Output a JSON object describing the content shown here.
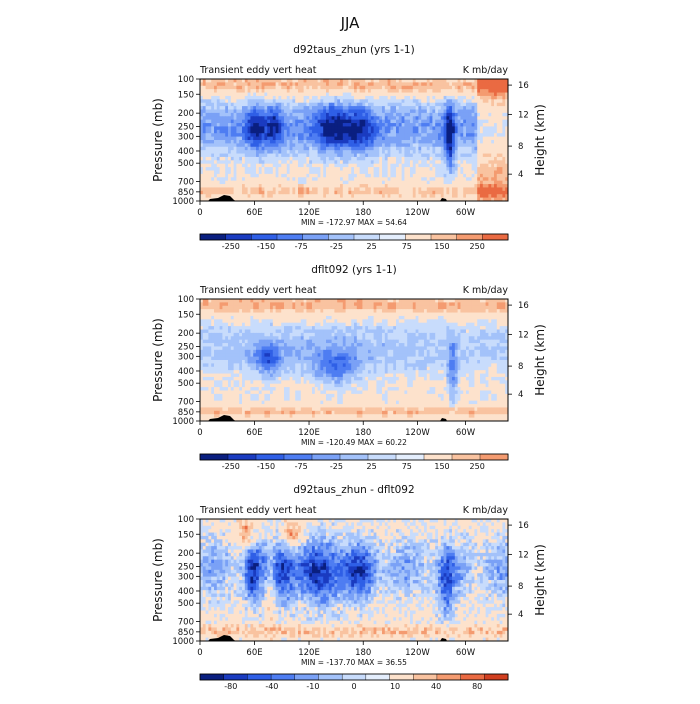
{
  "figure": {
    "title": "JJA"
  },
  "palettes": {
    "main": [
      "#0a1f80",
      "#1a3bc0",
      "#2f5fe6",
      "#4e7df2",
      "#7aa1f6",
      "#a3c2fa",
      "#c8dcfc",
      "#e4eefd",
      "#fde2cc",
      "#f9c3a0",
      "#f49b70",
      "#ea6a42",
      "#d13f20",
      "#a8220e",
      "#6b0f05"
    ],
    "diff": [
      "#0a1f80",
      "#1a3bc0",
      "#2f5fe6",
      "#4e7df2",
      "#7aa1f6",
      "#a3c2fa",
      "#c8dcfc",
      "#e4eefd",
      "#fde2cc",
      "#f9c3a0",
      "#f49b70",
      "#ea6a42",
      "#d13f20",
      "#a8220e",
      "#6b0f05"
    ]
  },
  "chart_data": [
    {
      "type": "heatmap",
      "title": "d92taus_zhun (yrs 1-1)",
      "left_label": "Transient eddy vert heat",
      "right_label": "K mb/day",
      "ylabel": "Pressure (mb)",
      "ylabel_right": "Height (km)",
      "pressure_ticks": [
        "100",
        "150",
        "200",
        "250",
        "300",
        "400",
        "500",
        "700",
        "850",
        "1000"
      ],
      "height_ticks": [
        "16",
        "12",
        "8",
        "4"
      ],
      "x_ticks": [
        "0",
        "60E",
        "120E",
        "180",
        "120W",
        "60W"
      ],
      "min_max_text": "MIN = -172.97   MAX =  54.64",
      "colorbar_labels": [
        "-250",
        "-150",
        "-75",
        "-25",
        "25",
        "75",
        "150",
        "250"
      ],
      "palette": "main",
      "max_level": 11
    },
    {
      "type": "heatmap",
      "title": "dflt092 (yrs 1-1)",
      "left_label": "Transient eddy vert heat",
      "right_label": "K mb/day",
      "ylabel": "Pressure (mb)",
      "ylabel_right": "Height (km)",
      "pressure_ticks": [
        "100",
        "150",
        "200",
        "250",
        "300",
        "400",
        "500",
        "700",
        "850",
        "1000"
      ],
      "height_ticks": [
        "16",
        "12",
        "8",
        "4"
      ],
      "x_ticks": [
        "0",
        "60E",
        "120E",
        "180",
        "120W",
        "60W"
      ],
      "min_max_text": "MIN = -120.49   MAX =  60.22",
      "colorbar_labels": [
        "-250",
        "-150",
        "-75",
        "-25",
        "25",
        "75",
        "150",
        "250"
      ],
      "palette": "main",
      "max_level": 10
    },
    {
      "type": "heatmap",
      "title": "d92taus_zhun - dflt092",
      "left_label": "Transient eddy vert heat",
      "right_label": "K mb/day",
      "ylabel": "Pressure (mb)",
      "ylabel_right": "Height (km)",
      "pressure_ticks": [
        "100",
        "150",
        "200",
        "250",
        "300",
        "400",
        "500",
        "700",
        "850",
        "1000"
      ],
      "height_ticks": [
        "16",
        "12",
        "8",
        "4"
      ],
      "x_ticks": [
        "0",
        "60E",
        "120E",
        "180",
        "120W",
        "60W"
      ],
      "min_max_text": "MIN = -137.70   MAX =  36.55",
      "colorbar_labels": [
        "-80",
        "-40",
        "-10",
        "0",
        "10",
        "40",
        "80"
      ],
      "palette": "diff",
      "max_level": 12
    }
  ]
}
